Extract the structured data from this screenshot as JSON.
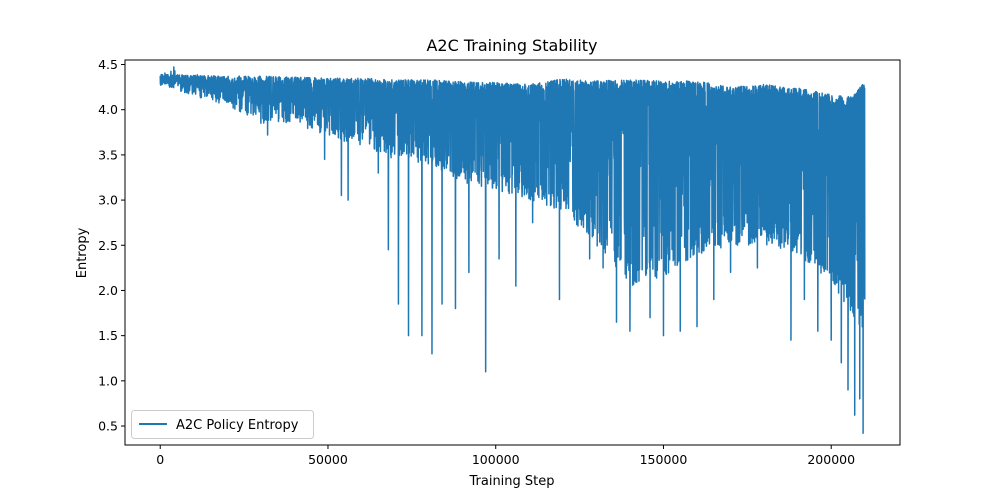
{
  "chart_data": {
    "type": "line",
    "title": "A2C Training Stability",
    "xlabel": "Training Step",
    "ylabel": "Entropy",
    "xlim": [
      -10500,
      220500
    ],
    "ylim": [
      0.29,
      4.55
    ],
    "xticks": [
      0,
      50000,
      100000,
      150000,
      200000
    ],
    "xtick_labels": [
      "0",
      "50000",
      "100000",
      "150000",
      "200000"
    ],
    "yticks": [
      0.5,
      1.0,
      1.5,
      2.0,
      2.5,
      3.0,
      3.5,
      4.0,
      4.5
    ],
    "ytick_labels": [
      "0.5",
      "1.0",
      "1.5",
      "2.0",
      "2.5",
      "3.0",
      "3.5",
      "4.0",
      "4.5"
    ],
    "grid": false,
    "legend_position": "lower-left",
    "series": [
      {
        "name": "A2C Policy Entropy",
        "color": "#1f77b4",
        "x_range": [
          0,
          210000
        ],
        "upper_envelope": [
          [
            0,
            4.39
          ],
          [
            10000,
            4.38
          ],
          [
            20000,
            4.37
          ],
          [
            30000,
            4.37
          ],
          [
            40000,
            4.36
          ],
          [
            50000,
            4.35
          ],
          [
            60000,
            4.35
          ],
          [
            70000,
            4.33
          ],
          [
            80000,
            4.33
          ],
          [
            90000,
            4.31
          ],
          [
            100000,
            4.3
          ],
          [
            110000,
            4.28
          ],
          [
            120000,
            4.34
          ],
          [
            130000,
            4.32
          ],
          [
            140000,
            4.33
          ],
          [
            150000,
            4.32
          ],
          [
            160000,
            4.32
          ],
          [
            170000,
            4.25
          ],
          [
            180000,
            4.28
          ],
          [
            190000,
            4.24
          ],
          [
            200000,
            4.17
          ],
          [
            206000,
            4.14
          ],
          [
            210000,
            4.32
          ]
        ],
        "typical_lower_envelope": [
          [
            0,
            4.28
          ],
          [
            10000,
            4.15
          ],
          [
            20000,
            4.05
          ],
          [
            30000,
            3.85
          ],
          [
            40000,
            3.85
          ],
          [
            50000,
            3.7
          ],
          [
            60000,
            3.6
          ],
          [
            70000,
            3.45
          ],
          [
            80000,
            3.4
          ],
          [
            90000,
            3.2
          ],
          [
            100000,
            3.1
          ],
          [
            110000,
            3.0
          ],
          [
            120000,
            2.85
          ],
          [
            130000,
            2.5
          ],
          [
            140000,
            2.05
          ],
          [
            150000,
            2.15
          ],
          [
            160000,
            2.4
          ],
          [
            170000,
            2.5
          ],
          [
            180000,
            2.5
          ],
          [
            190000,
            2.4
          ],
          [
            200000,
            2.1
          ],
          [
            210000,
            1.5
          ]
        ],
        "notable_dips": [
          [
            32000,
            3.72
          ],
          [
            49000,
            3.45
          ],
          [
            54000,
            3.05
          ],
          [
            56000,
            3.0
          ],
          [
            65000,
            3.3
          ],
          [
            68000,
            2.45
          ],
          [
            71000,
            1.85
          ],
          [
            74000,
            1.5
          ],
          [
            78000,
            1.5
          ],
          [
            81000,
            1.3
          ],
          [
            84000,
            1.85
          ],
          [
            88000,
            1.8
          ],
          [
            92000,
            2.2
          ],
          [
            97000,
            1.1
          ],
          [
            101000,
            2.35
          ],
          [
            106000,
            2.05
          ],
          [
            111000,
            2.75
          ],
          [
            119000,
            1.9
          ],
          [
            124000,
            3.0
          ],
          [
            128000,
            2.35
          ],
          [
            132000,
            2.25
          ],
          [
            136000,
            1.65
          ],
          [
            140000,
            1.55
          ],
          [
            146000,
            1.7
          ],
          [
            150000,
            1.5
          ],
          [
            155000,
            1.55
          ],
          [
            160000,
            1.6
          ],
          [
            165000,
            1.9
          ],
          [
            170000,
            2.2
          ],
          [
            178000,
            2.25
          ],
          [
            188000,
            1.45
          ],
          [
            192000,
            1.9
          ],
          [
            196000,
            1.55
          ],
          [
            200000,
            1.45
          ],
          [
            203000,
            1.2
          ],
          [
            205000,
            0.9
          ],
          [
            207000,
            0.62
          ],
          [
            208500,
            0.8
          ],
          [
            209500,
            0.42
          ],
          [
            210000,
            1.9
          ]
        ]
      }
    ]
  }
}
